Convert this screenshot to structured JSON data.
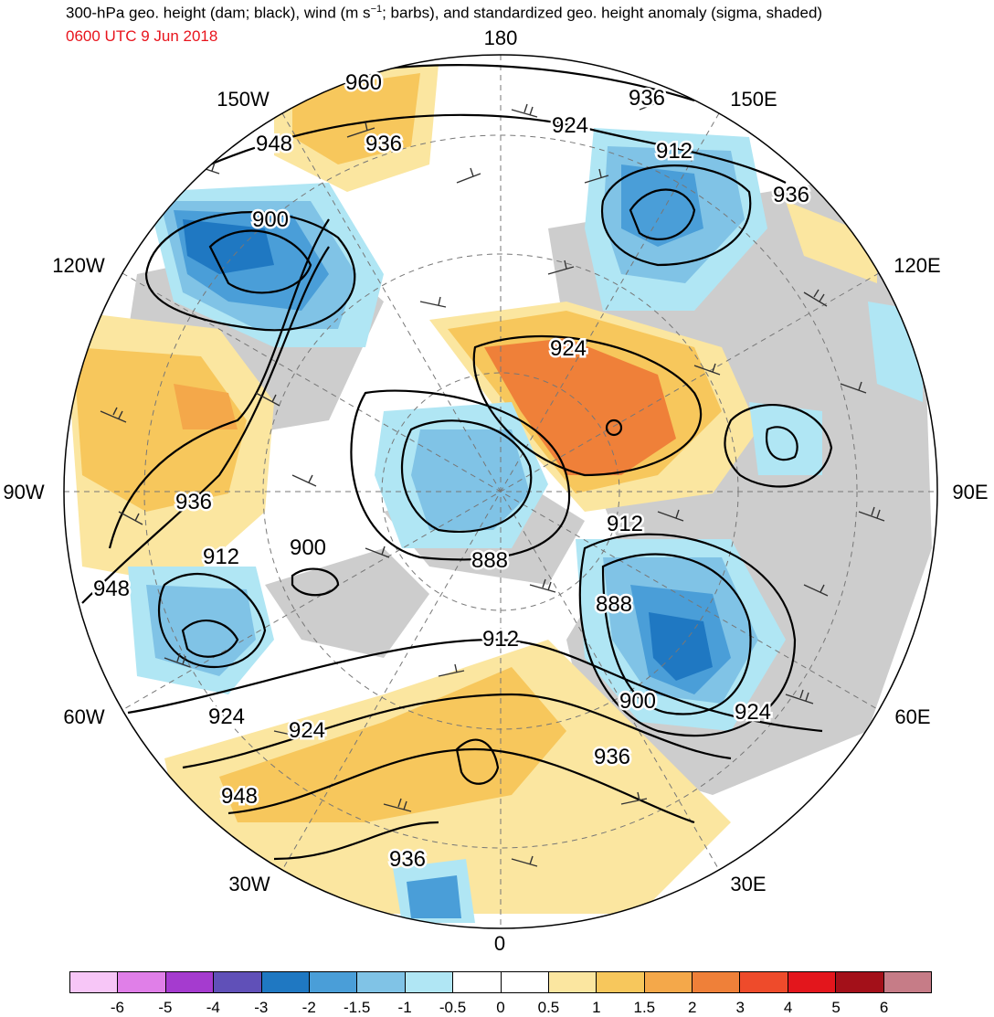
{
  "header": {
    "title_prefix": "300-hPa geo. height (dam; black), wind (m s",
    "title_sup": "−1",
    "title_suffix": "; barbs), and standardized geo. height anomaly (sigma, shaded)",
    "valid_time": "0600 UTC 9 Jun 2018",
    "valid_time_color": "#e8141c"
  },
  "longitude_labels": {
    "lon_180": "180",
    "lon_150e": "150E",
    "lon_120e": "120E",
    "lon_90e": "90E",
    "lon_60e": "60E",
    "lon_30e": "30E",
    "lon_0": "0",
    "lon_30w": "30W",
    "lon_60w": "60W",
    "lon_90w": "90W",
    "lon_120w": "120W",
    "lon_150w": "150W"
  },
  "contour_labels": {
    "c960": "960",
    "c936_top": "936",
    "c948_top": "948",
    "c936_left": "936",
    "c924_top": "924",
    "c912_top": "912",
    "c936_right": "936",
    "c900_top": "900",
    "c924_center": "924",
    "c936_west": "936",
    "c912_west": "912",
    "c900_west": "900",
    "c948_west": "948",
    "c888_center": "888",
    "c912_center": "912",
    "c888_east": "888",
    "c912_south": "912",
    "c900_east": "900",
    "c924_east": "924",
    "c924_sw1": "924",
    "c924_sw2": "924",
    "c936_south": "936",
    "c948_sw": "948",
    "c936_bottom": "936"
  },
  "colorbar": {
    "colors": [
      "#f7c6f7",
      "#e07fe8",
      "#a53bcf",
      "#6050b8",
      "#1f78c2",
      "#4a9ed8",
      "#80c3e6",
      "#b0e6f4",
      "#ffffff",
      "#ffffff",
      "#fbe6a0",
      "#f7c75c",
      "#f4a84a",
      "#ef8039",
      "#ee4b2b",
      "#e3161c",
      "#a31019",
      "#c67c87"
    ],
    "ticks": [
      "-6",
      "-5",
      "-4",
      "-3",
      "-2",
      "-1.5",
      "-1",
      "-0.5",
      "0",
      "0.5",
      "1",
      "1.5",
      "2",
      "3",
      "4",
      "5",
      "6"
    ]
  }
}
